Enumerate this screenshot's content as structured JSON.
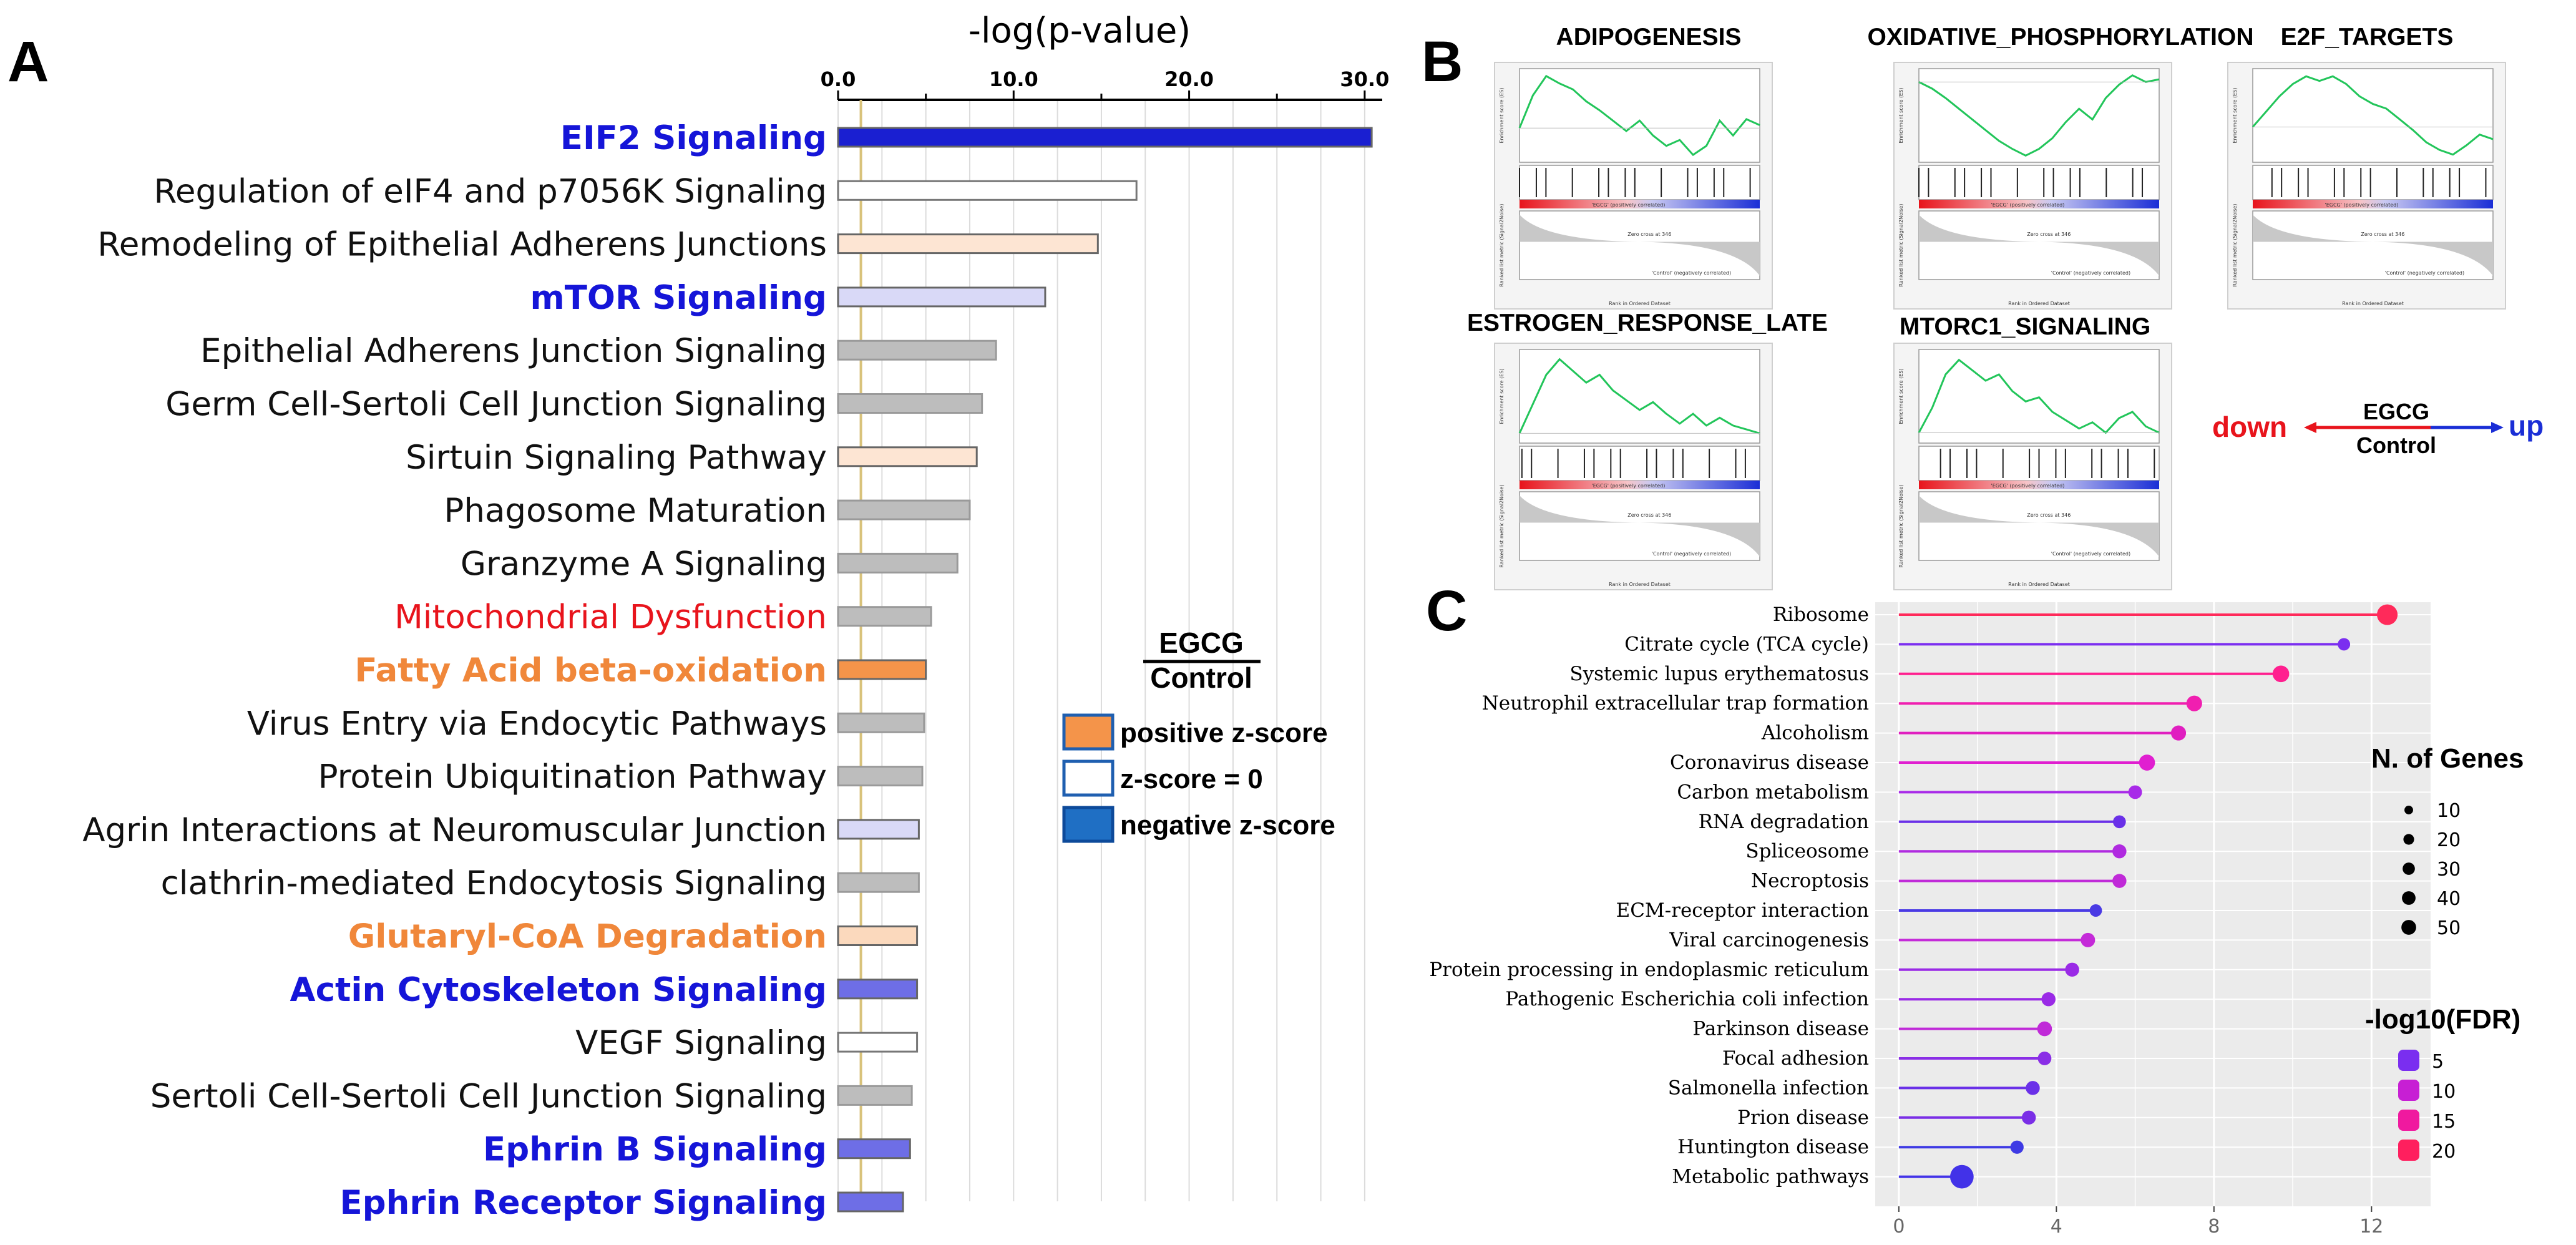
{
  "panels": {
    "a": "A",
    "b": "B",
    "c": "C"
  },
  "chart_data": [
    {
      "type": "bar",
      "orientation": "horizontal",
      "title": "-log(p-value)",
      "xlim": [
        0,
        31
      ],
      "ticks": [
        "0.0",
        "10.0",
        "20.0",
        "30.0"
      ],
      "tick_values": [
        0,
        10,
        20,
        30
      ],
      "threshold": 1.3,
      "colors": {
        "dark_blue": "#1a1fd1",
        "light_blue": "#d9d9f7",
        "mid_blue": "#6e6ee6",
        "white": "#ffffff",
        "gray": "#bdbdbd",
        "light_orange": "#fde5d3",
        "orange": "#f4944a",
        "peach": "#fbd9bd"
      },
      "label_colors": {
        "blue": "#1515d8",
        "red": "#e8141c",
        "orange": "#f0873a",
        "black": "#111111"
      },
      "categories": [
        {
          "label": "EIF2 Signaling",
          "value": 30.4,
          "bar": "dark_blue",
          "text": "blue",
          "bold": true
        },
        {
          "label": "Regulation of eIF4 and p7056K Signaling",
          "value": 17.0,
          "bar": "white",
          "text": "black",
          "bold": false
        },
        {
          "label": "Remodeling of Epithelial Adherens Junctions",
          "value": 14.8,
          "bar": "light_orange",
          "text": "black",
          "bold": false
        },
        {
          "label": "mTOR Signaling",
          "value": 11.8,
          "bar": "light_blue",
          "text": "blue",
          "bold": true
        },
        {
          "label": "Epithelial Adherens Junction Signaling",
          "value": 9.0,
          "bar": "gray",
          "text": "black",
          "bold": false
        },
        {
          "label": "Germ Cell-Sertoli Cell Junction Signaling",
          "value": 8.2,
          "bar": "gray",
          "text": "black",
          "bold": false
        },
        {
          "label": "Sirtuin Signaling Pathway",
          "value": 7.9,
          "bar": "light_orange",
          "text": "black",
          "bold": false
        },
        {
          "label": "Phagosome Maturation",
          "value": 7.5,
          "bar": "gray",
          "text": "black",
          "bold": false
        },
        {
          "label": "Granzyme A Signaling",
          "value": 6.8,
          "bar": "gray",
          "text": "black",
          "bold": false
        },
        {
          "label": "Mitochondrial Dysfunction",
          "value": 5.3,
          "bar": "gray",
          "text": "red",
          "bold": false
        },
        {
          "label": "Fatty Acid beta-oxidation",
          "value": 5.0,
          "bar": "orange",
          "text": "orange",
          "bold": true
        },
        {
          "label": "Virus Entry via Endocytic Pathways",
          "value": 4.9,
          "bar": "gray",
          "text": "black",
          "bold": false
        },
        {
          "label": "Protein Ubiquitination Pathway",
          "value": 4.8,
          "bar": "gray",
          "text": "black",
          "bold": false
        },
        {
          "label": "Agrin Interactions at Neuromuscular Junction",
          "value": 4.6,
          "bar": "light_blue",
          "text": "black",
          "bold": false
        },
        {
          "label": "clathrin-mediated Endocytosis Signaling",
          "value": 4.6,
          "bar": "gray",
          "text": "black",
          "bold": false
        },
        {
          "label": "Glutaryl-CoA Degradation",
          "value": 4.5,
          "bar": "peach",
          "text": "orange",
          "bold": true
        },
        {
          "label": "Actin Cytoskeleton Signaling",
          "value": 4.5,
          "bar": "mid_blue",
          "text": "blue",
          "bold": true
        },
        {
          "label": "VEGF Signaling",
          "value": 4.5,
          "bar": "white",
          "text": "black",
          "bold": false
        },
        {
          "label": "Sertoli Cell-Sertoli Cell Junction Signaling",
          "value": 4.2,
          "bar": "gray",
          "text": "black",
          "bold": false
        },
        {
          "label": "Ephrin B Signaling",
          "value": 4.1,
          "bar": "mid_blue",
          "text": "blue",
          "bold": true
        },
        {
          "label": "Ephrin Receptor Signaling",
          "value": 3.7,
          "bar": "mid_blue",
          "text": "blue",
          "bold": true
        }
      ],
      "legend": {
        "title_top": "EGCG",
        "title_bottom": "Control",
        "items": [
          {
            "label": "positive z-score",
            "color": "#f4944a"
          },
          {
            "label": "z-score = 0",
            "color": "#ffffff"
          },
          {
            "label": "negative z-score",
            "color": "#1f6fc4"
          }
        ]
      }
    },
    {
      "type": "line",
      "description_role": "GSEA enrichment plots",
      "plots": [
        {
          "title": "ADIPOGENESIS",
          "es": [
            0,
            0.22,
            0.35,
            0.3,
            0.26,
            0.18,
            0.12,
            0.05,
            -0.02,
            0.05,
            -0.05,
            -0.12,
            -0.08,
            -0.18,
            -0.12,
            0.05,
            -0.05,
            0.06,
            0.02
          ]
        },
        {
          "title": "OXIDATIVE_PHOSPHORYLATION",
          "es": [
            0,
            -0.05,
            -0.12,
            -0.2,
            -0.28,
            -0.36,
            -0.44,
            -0.5,
            -0.55,
            -0.5,
            -0.42,
            -0.3,
            -0.2,
            -0.28,
            -0.12,
            -0.02,
            0.05,
            0.0,
            0.02
          ]
        },
        {
          "title": "E2F_TARGETS",
          "es": [
            0,
            0.1,
            0.2,
            0.28,
            0.33,
            0.3,
            0.33,
            0.28,
            0.2,
            0.15,
            0.12,
            0.05,
            -0.02,
            -0.1,
            -0.15,
            -0.18,
            -0.12,
            -0.05,
            -0.08
          ]
        },
        {
          "title": "ESTROGEN_RESPONSE_LATE",
          "es": [
            0,
            0.15,
            0.3,
            0.38,
            0.32,
            0.26,
            0.3,
            0.22,
            0.17,
            0.12,
            0.16,
            0.1,
            0.05,
            0.1,
            0.04,
            0.08,
            0.04,
            0.02,
            0.0
          ]
        },
        {
          "title": "MTORC1_SIGNALING",
          "es": [
            0,
            0.12,
            0.28,
            0.35,
            0.3,
            0.25,
            0.28,
            0.2,
            0.15,
            0.17,
            0.1,
            0.06,
            0.02,
            0.05,
            0.0,
            0.07,
            0.1,
            0.03,
            0.0
          ]
        }
      ],
      "axis_text": {
        "ylabel": "Enrichment score (ES)",
        "ylabel2": "Ranked list metric (Signal2Noise)",
        "xlabel": "Rank in Ordered Dataset",
        "pos": "'EGCG' (positively correlated)",
        "neg": "'Control' (negatively correlated)",
        "zero": "Zero cross at 346"
      },
      "direction": {
        "down": "down",
        "up": "up",
        "top": "EGCG",
        "bottom": "Control",
        "down_color": "#e8141c",
        "up_color": "#1a2ed6"
      }
    },
    {
      "type": "scatter",
      "subtype": "lollipop",
      "x_ticks": [
        0,
        4,
        8,
        12
      ],
      "xlim": [
        -0.6,
        13.5
      ],
      "categories": [
        {
          "label": "Ribosome",
          "value": 12.4,
          "genes": 38,
          "color": "#ff2a5a"
        },
        {
          "label": "Citrate cycle (TCA cycle)",
          "value": 11.3,
          "genes": 10,
          "color": "#7b2ef0"
        },
        {
          "label": "Systemic lupus erythematosus",
          "value": 9.7,
          "genes": 22,
          "color": "#ff1f8f"
        },
        {
          "label": "Neutrophil extracellular trap formation",
          "value": 7.5,
          "genes": 19,
          "color": "#f01fb0"
        },
        {
          "label": "Alcoholism",
          "value": 7.1,
          "genes": 17,
          "color": "#e01fc0"
        },
        {
          "label": "Coronavirus disease",
          "value": 6.3,
          "genes": 20,
          "color": "#e01fd0"
        },
        {
          "label": "Carbon metabolism",
          "value": 6.0,
          "genes": 13,
          "color": "#a82ae8"
        },
        {
          "label": "RNA degradation",
          "value": 5.6,
          "genes": 11,
          "color": "#6a30e8"
        },
        {
          "label": "Spliceosome",
          "value": 5.6,
          "genes": 14,
          "color": "#b02ae0"
        },
        {
          "label": "Necroptosis",
          "value": 5.6,
          "genes": 14,
          "color": "#c02ad8"
        },
        {
          "label": "ECM-receptor interaction",
          "value": 5.0,
          "genes": 10,
          "color": "#4a3ae4"
        },
        {
          "label": "Viral carcinogenesis",
          "value": 4.8,
          "genes": 15,
          "color": "#c42ad8"
        },
        {
          "label": "Protein processing in endoplasmic reticulum",
          "value": 4.4,
          "genes": 14,
          "color": "#9a2ae6"
        },
        {
          "label": "Pathogenic Escherichia coli infection",
          "value": 3.8,
          "genes": 14,
          "color": "#9a2ae6"
        },
        {
          "label": "Parkinson disease",
          "value": 3.7,
          "genes": 16,
          "color": "#c02ad8"
        },
        {
          "label": "Focal adhesion",
          "value": 3.7,
          "genes": 13,
          "color": "#8a2ee6"
        },
        {
          "label": "Salmonella infection",
          "value": 3.4,
          "genes": 14,
          "color": "#6a30e8"
        },
        {
          "label": "Prion disease",
          "value": 3.3,
          "genes": 14,
          "color": "#7a2ee6"
        },
        {
          "label": "Huntington disease",
          "value": 3.0,
          "genes": 12,
          "color": "#3e3ae4"
        },
        {
          "label": "Metabolic pathways",
          "value": 1.6,
          "genes": 52,
          "color": "#4232e8"
        }
      ],
      "legend_size": {
        "title": "N. of Genes",
        "values": [
          10,
          20,
          30,
          40,
          50
        ]
      },
      "legend_color": {
        "title": "-log10(FDR)",
        "items": [
          {
            "label": "5",
            "color": "#7a2ef0"
          },
          {
            "label": "10",
            "color": "#c71fd4"
          },
          {
            "label": "15",
            "color": "#f0199f"
          },
          {
            "label": "20",
            "color": "#ff1f5e"
          }
        ]
      }
    }
  ]
}
